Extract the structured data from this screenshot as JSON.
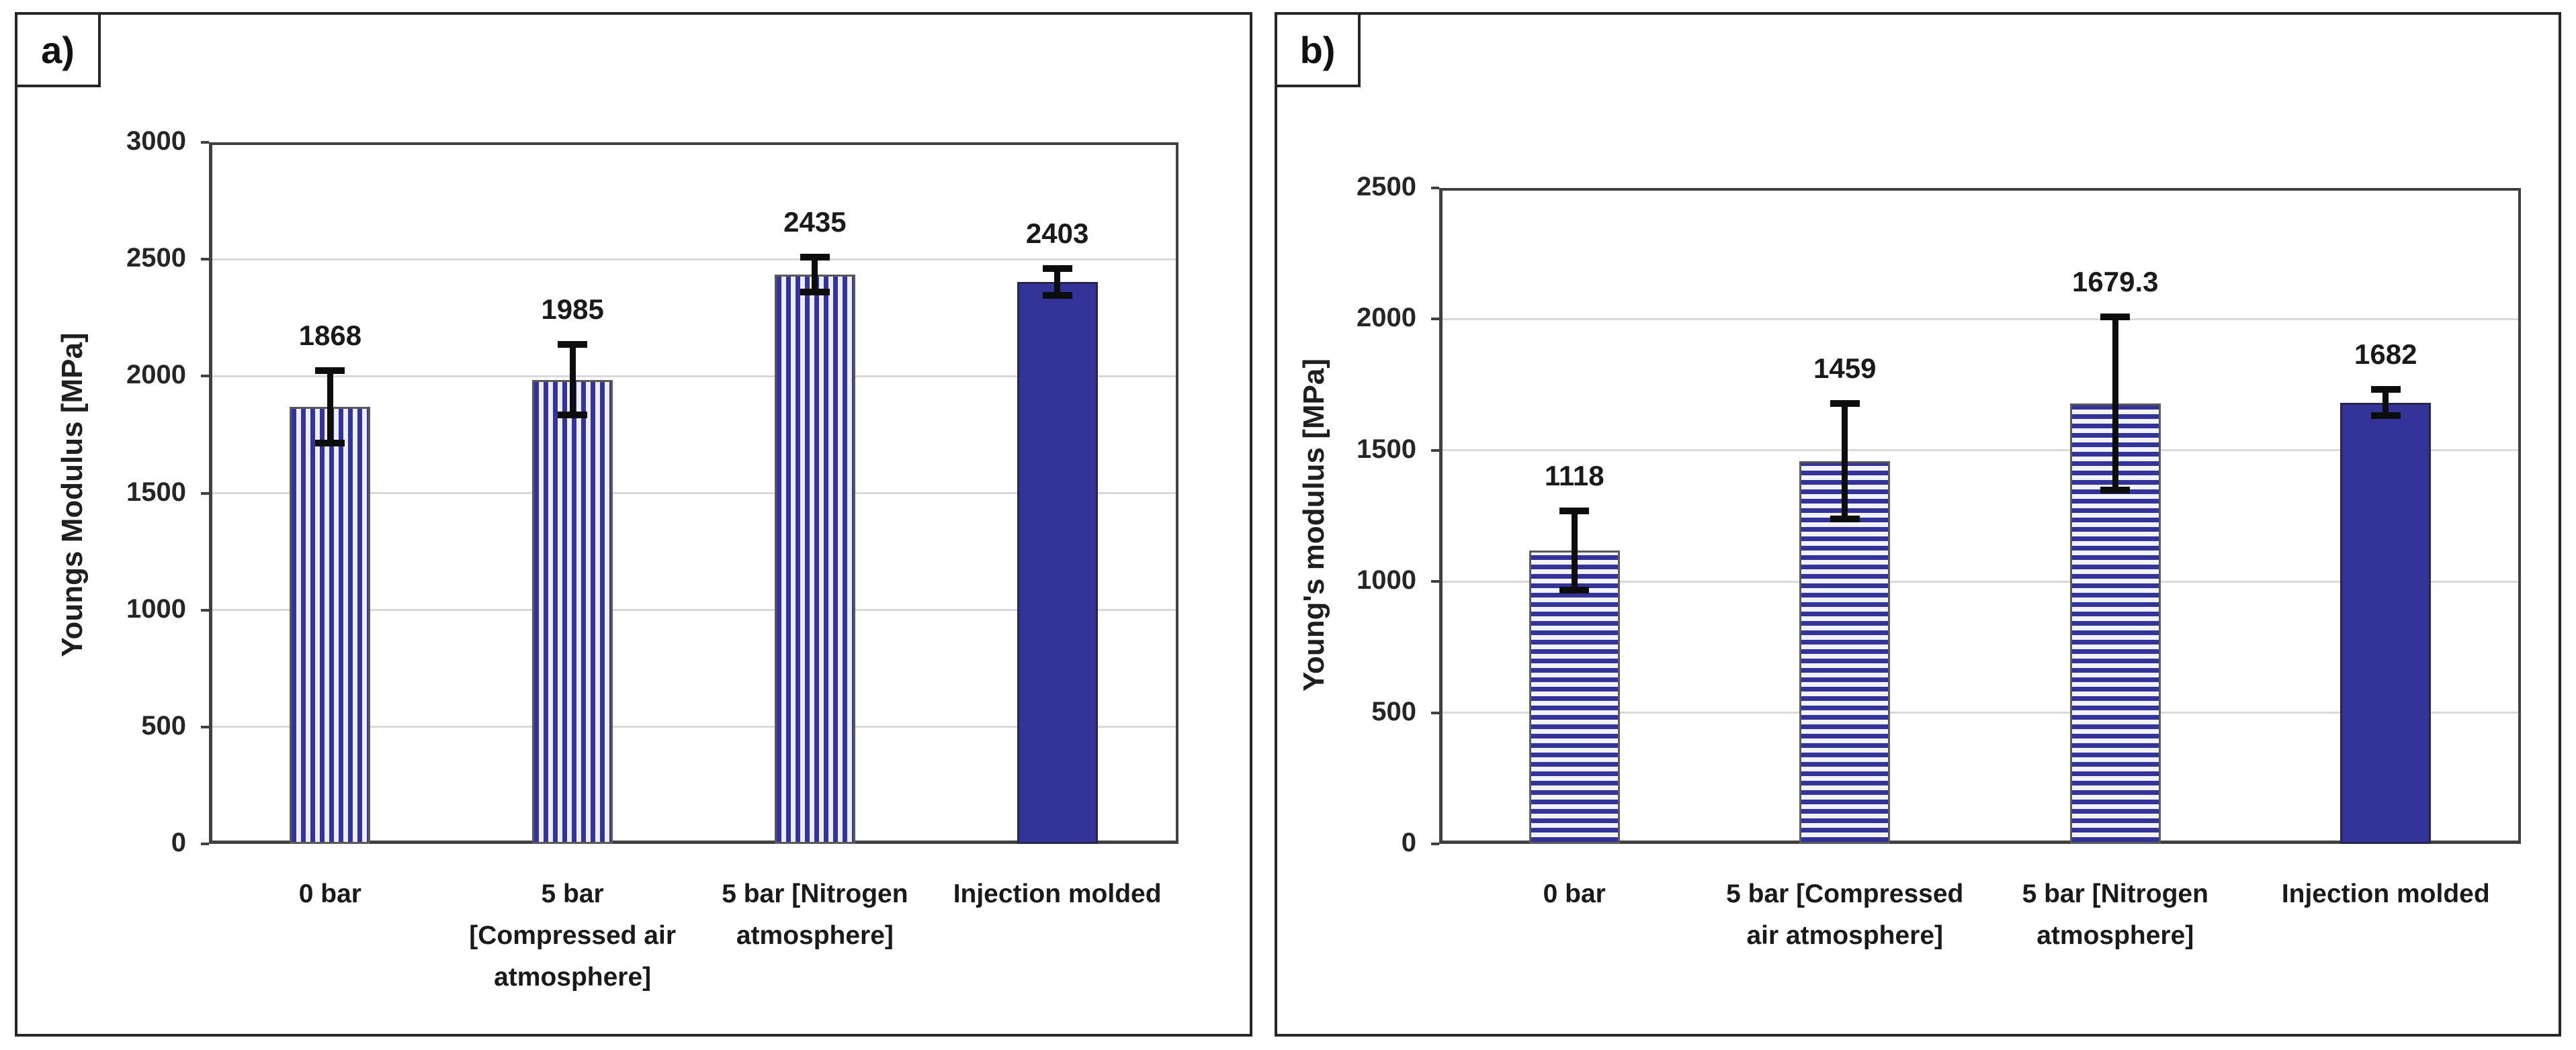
{
  "figure": {
    "background": "#ffffff",
    "text_color": "#1a1a1a",
    "accent_blue": "#333399",
    "bar_border_gray": "#595959",
    "gridline_color": "#d9d9d9",
    "axis_color": "#404040",
    "error_bar_color": "#0d0d0d"
  },
  "chart_data": [
    {
      "type": "bar",
      "panel_label": "a)",
      "ylabel": "Youngs Modulus [MPa]",
      "xlabel": "",
      "ylim": [
        0,
        3000
      ],
      "ytick_step": 500,
      "ytick_labels": [
        "0",
        "500",
        "1000",
        "1500",
        "2000",
        "2500",
        "3000"
      ],
      "grid": true,
      "legend": "none",
      "categories": [
        "0 bar",
        "5 bar\n[Compressed air\natmosphere]",
        "5 bar [Nitrogen\natmosphere]",
        "Injection molded"
      ],
      "values": [
        1868,
        1985,
        2435,
        2403
      ],
      "data_labels": [
        "1868",
        "1985",
        "2435",
        "2403"
      ],
      "error_bars": [
        155,
        150,
        75,
        58
      ],
      "bar_styles": [
        "vstripes",
        "vstripes",
        "vstripes",
        "solid"
      ]
    },
    {
      "type": "bar",
      "panel_label": "b)",
      "ylabel": "Young's modulus [MPa]",
      "xlabel": "",
      "ylim": [
        0,
        2500
      ],
      "ytick_step": 500,
      "ytick_labels": [
        "0",
        "500",
        "1000",
        "1500",
        "2000",
        "2500"
      ],
      "grid": true,
      "legend": "none",
      "categories": [
        "0 bar",
        "5 bar [Compressed\nair atmosphere]",
        "5 bar [Nitrogen\natmosphere]",
        "Injection molded"
      ],
      "values": [
        1118,
        1459,
        1679.3,
        1682
      ],
      "data_labels": [
        "1118",
        "1459",
        "1679.3",
        "1682"
      ],
      "error_bars": [
        150,
        220,
        330,
        50
      ],
      "bar_styles": [
        "hstripes",
        "hstripes",
        "hstripes",
        "solid"
      ]
    }
  ]
}
